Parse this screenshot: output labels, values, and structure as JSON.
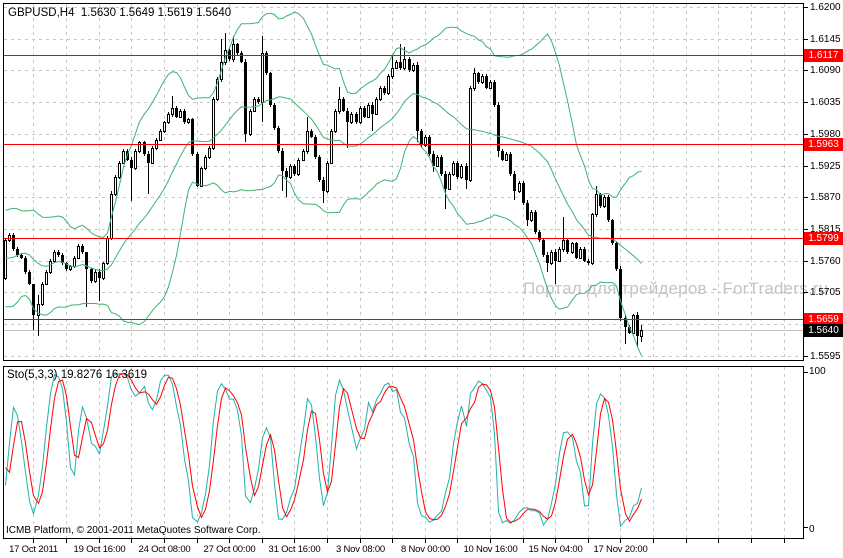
{
  "window": {
    "title": "GBPUSD,H4  1.5630 1.5649 1.5619 1.5640"
  },
  "watermark_text": "Портал для трейдеров - ForTraders.ru",
  "copyright_text": "ICMB Platform, © 2001-2011 MetaQuotes Software Corp.",
  "price_axis_ticks": [
    1.62,
    1.6145,
    1.609,
    1.6035,
    1.598,
    1.5925,
    1.587,
    1.5815,
    1.576,
    1.5705,
    1.565,
    1.5595
  ],
  "time_labels": [
    "17 Oct 2011",
    "19 Oct 16:00",
    "24 Oct 08:00",
    "27 Oct 00:00",
    "31 Oct 16:00",
    "3 Nov 08:00",
    "8 Nov 00:00",
    "10 Nov 16:00",
    "15 Nov 04:00",
    "17 Nov 20:00"
  ],
  "sto_panel": {
    "label_name": "Sto(5,3,3)",
    "label_values": "19.8276 16.3619",
    "scale_max": "100",
    "scale_min": "0"
  },
  "colors": {
    "background": "#ffffff",
    "border": "#000000",
    "grid": "#c8c8c8",
    "bull": "#ffffff",
    "bear": "#000000",
    "bollinger": "#3cb371",
    "sto_main": "#20b2aa",
    "sto_signal": "#ff0000",
    "hline": "#ff0000",
    "bid_line": "#c0c0c0",
    "bid_flag_bg": "#000000",
    "flag_text": "#ffffff",
    "watermark": "#c4c4c4"
  },
  "chart_data": {
    "type": "candlestick",
    "symbol": "GBPUSD",
    "timeframe": "H4",
    "title_ohlc": {
      "open": 1.563,
      "high": 1.5649,
      "low": 1.5619,
      "close": 1.564
    },
    "price_range_visible": [
      1.5588,
      1.6205
    ],
    "hlines": [
      1.6117,
      1.5963,
      1.5799,
      1.5659
    ],
    "bid": 1.564,
    "history_closes": [
      1.582,
      1.579,
      1.575,
      1.571,
      1.57,
      1.573,
      1.578,
      1.582,
      1.583,
      1.58,
      1.575,
      1.571,
      1.57,
      1.573,
      1.578,
      1.581,
      1.582,
      1.579,
      1.575,
      1.573
    ],
    "closes": [
      1.5795,
      1.5805,
      1.578,
      1.577,
      1.5765,
      1.574,
      1.572,
      1.5665,
      1.5685,
      1.572,
      1.574,
      1.576,
      1.5775,
      1.577,
      1.5755,
      1.5745,
      1.575,
      1.5765,
      1.5785,
      1.5775,
      1.5745,
      1.5725,
      1.574,
      1.573,
      1.5755,
      1.58,
      1.5875,
      1.5905,
      1.593,
      1.595,
      1.5935,
      1.592,
      1.595,
      1.5965,
      1.5945,
      1.593,
      1.5955,
      1.597,
      1.5985,
      1.6,
      1.6015,
      1.6025,
      1.601,
      1.602,
      1.6,
      1.6005,
      1.5945,
      1.589,
      1.592,
      1.594,
      1.5955,
      1.604,
      1.6075,
      1.6105,
      1.6125,
      1.611,
      1.6135,
      1.612,
      1.6105,
      1.598,
      1.602,
      1.604,
      1.6035,
      1.612,
      1.6085,
      1.603,
      1.599,
      1.595,
      1.5915,
      1.5905,
      1.5925,
      1.591,
      1.5935,
      1.595,
      1.5985,
      1.5975,
      1.594,
      1.59,
      1.588,
      1.593,
      1.5985,
      1.602,
      1.604,
      1.602,
      1.6,
      1.6015,
      1.6,
      1.6025,
      1.601,
      1.603,
      1.6015,
      1.604,
      1.606,
      1.605,
      1.608,
      1.6095,
      1.6105,
      1.6095,
      1.611,
      1.609,
      1.61,
      1.5985,
      1.596,
      1.5975,
      1.5945,
      1.5925,
      1.594,
      1.591,
      1.5885,
      1.591,
      1.593,
      1.5905,
      1.5925,
      1.59,
      1.606,
      1.6085,
      1.607,
      1.608,
      1.606,
      1.607,
      1.603,
      1.595,
      1.5935,
      1.5945,
      1.591,
      1.588,
      1.5895,
      1.586,
      1.583,
      1.5845,
      1.581,
      1.5795,
      1.577,
      1.5755,
      1.5775,
      1.576,
      1.578,
      1.5795,
      1.5775,
      1.579,
      1.5765,
      1.578,
      1.576,
      1.5755,
      1.584,
      1.5875,
      1.5855,
      1.587,
      1.583,
      1.579,
      1.5745,
      1.566,
      1.5645,
      1.5635,
      1.5665,
      1.563,
      1.564
    ],
    "wick_overrides": {
      "7": [
        1.57,
        1.564
      ],
      "8": [
        1.57,
        1.563
      ],
      "20": [
        1.576,
        1.568
      ],
      "23": [
        1.5745,
        1.569
      ],
      "26": [
        1.588,
        1.5795
      ],
      "31": [
        1.594,
        1.5863
      ],
      "35": [
        1.595,
        1.5875
      ],
      "41": [
        1.6045,
        1.601
      ],
      "53": [
        1.6145,
        1.607
      ],
      "54": [
        1.6155,
        1.61
      ],
      "56": [
        1.615,
        1.6105
      ],
      "59": [
        1.611,
        1.5966
      ],
      "63": [
        1.615,
        1.6
      ],
      "68": [
        1.5955,
        1.588
      ],
      "69": [
        1.592,
        1.587
      ],
      "74": [
        1.601,
        1.5945
      ],
      "78": [
        1.5905,
        1.586
      ],
      "82": [
        1.6062,
        1.6015
      ],
      "84": [
        1.6025,
        1.5955
      ],
      "90": [
        1.6035,
        1.5985
      ],
      "95": [
        1.6115,
        1.6075
      ],
      "97": [
        1.6135,
        1.609
      ],
      "98": [
        1.613,
        1.609
      ],
      "101": [
        1.6105,
        1.5966
      ],
      "105": [
        1.595,
        1.5914
      ],
      "108": [
        1.5915,
        1.585
      ],
      "113": [
        1.593,
        1.5885
      ],
      "115": [
        1.6095,
        1.6055
      ],
      "121": [
        1.6035,
        1.594
      ],
      "125": [
        1.5915,
        1.5865
      ],
      "128": [
        1.5865,
        1.582
      ],
      "133": [
        1.5775,
        1.574
      ],
      "135": [
        1.578,
        1.572
      ],
      "137": [
        1.5835,
        1.5775
      ],
      "145": [
        1.589,
        1.5835
      ],
      "151": [
        1.575,
        1.5655
      ],
      "152": [
        1.5665,
        1.5615
      ],
      "155": [
        1.567,
        1.561
      ],
      "156": [
        1.5649,
        1.5619
      ]
    },
    "indicators": {
      "bollinger": {
        "period": 20,
        "deviations": 2
      },
      "stochastic": {
        "k_period": 5,
        "d_period": 3,
        "slowing": 3,
        "current_k": 19.8276,
        "current_d": 16.3619,
        "range": [
          0,
          100
        ]
      }
    }
  }
}
